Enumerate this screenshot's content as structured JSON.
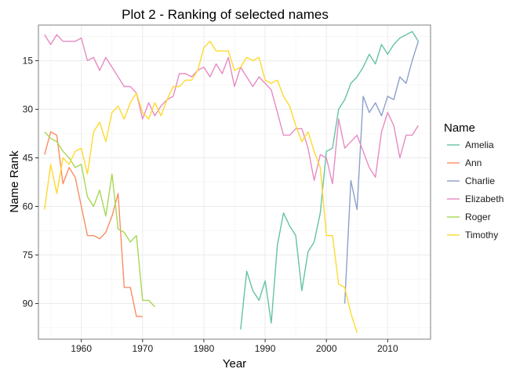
{
  "chart_data": {
    "type": "line",
    "title": "Plot 2 - Ranking of selected names",
    "xlabel": "Year",
    "ylabel": "Name Rank",
    "xlim": [
      1953,
      2017
    ],
    "ylim": [
      101,
      4
    ],
    "y_reversed": true,
    "x_ticks": [
      1960,
      1970,
      1980,
      1990,
      2000,
      2010
    ],
    "y_ticks": [
      15,
      30,
      45,
      60,
      75,
      90
    ],
    "grid": true,
    "legend_title": "Name",
    "legend_position": "right",
    "series": [
      {
        "name": "Amelia",
        "color": "#66c2a5",
        "points": [
          [
            1986,
            98
          ],
          [
            1987,
            80
          ],
          [
            1988,
            86
          ],
          [
            1989,
            89
          ],
          [
            1990,
            83
          ],
          [
            1991,
            96
          ],
          [
            1992,
            72
          ],
          [
            1993,
            62
          ],
          [
            1994,
            66
          ],
          [
            1995,
            69
          ],
          [
            1996,
            86
          ],
          [
            1997,
            74
          ],
          [
            1998,
            71
          ],
          [
            1999,
            62
          ],
          [
            2000,
            43
          ],
          [
            2001,
            42
          ],
          [
            2002,
            30
          ],
          [
            2003,
            27
          ],
          [
            2004,
            22
          ],
          [
            2005,
            20
          ],
          [
            2006,
            17
          ],
          [
            2007,
            13
          ],
          [
            2008,
            16
          ],
          [
            2009,
            10
          ],
          [
            2010,
            13
          ],
          [
            2011,
            10
          ],
          [
            2012,
            8
          ],
          [
            2013,
            7
          ],
          [
            2014,
            6
          ],
          [
            2015,
            9
          ]
        ]
      },
      {
        "name": "Ann",
        "color": "#fc8d62",
        "points": [
          [
            1954,
            44
          ],
          [
            1955,
            37
          ],
          [
            1956,
            38
          ],
          [
            1957,
            53
          ],
          [
            1958,
            48
          ],
          [
            1959,
            51
          ],
          [
            1960,
            60
          ],
          [
            1961,
            69
          ],
          [
            1962,
            69
          ],
          [
            1963,
            70
          ],
          [
            1964,
            68
          ],
          [
            1965,
            63
          ],
          [
            1966,
            56
          ],
          [
            1967,
            85
          ],
          [
            1968,
            85
          ],
          [
            1969,
            94
          ],
          [
            1970,
            94
          ]
        ]
      },
      {
        "name": "Charlie",
        "color": "#8da0cb",
        "points": [
          [
            2003,
            90
          ],
          [
            2004,
            52
          ],
          [
            2005,
            61
          ],
          [
            2006,
            26
          ],
          [
            2007,
            31
          ],
          [
            2008,
            28
          ],
          [
            2009,
            32
          ],
          [
            2010,
            26
          ],
          [
            2011,
            27
          ],
          [
            2012,
            20
          ],
          [
            2013,
            22
          ],
          [
            2014,
            15
          ],
          [
            2015,
            9
          ]
        ]
      },
      {
        "name": "Elizabeth",
        "color": "#e78ac3",
        "points": [
          [
            1954,
            7
          ],
          [
            1955,
            10
          ],
          [
            1956,
            7
          ],
          [
            1957,
            9
          ],
          [
            1958,
            9
          ],
          [
            1959,
            9
          ],
          [
            1960,
            8
          ],
          [
            1961,
            15
          ],
          [
            1962,
            14
          ],
          [
            1963,
            18
          ],
          [
            1964,
            14
          ],
          [
            1965,
            17
          ],
          [
            1966,
            20
          ],
          [
            1967,
            23
          ],
          [
            1968,
            23
          ],
          [
            1969,
            25
          ],
          [
            1970,
            33
          ],
          [
            1971,
            28
          ],
          [
            1972,
            32
          ],
          [
            1973,
            29
          ],
          [
            1974,
            27
          ],
          [
            1975,
            26
          ],
          [
            1976,
            19
          ],
          [
            1977,
            19
          ],
          [
            1978,
            20
          ],
          [
            1979,
            18
          ],
          [
            1980,
            17
          ],
          [
            1981,
            20
          ],
          [
            1982,
            16
          ],
          [
            1983,
            19
          ],
          [
            1984,
            14
          ],
          [
            1985,
            23
          ],
          [
            1986,
            17
          ],
          [
            1987,
            20
          ],
          [
            1988,
            23
          ],
          [
            1989,
            20
          ],
          [
            1990,
            22
          ],
          [
            1991,
            24
          ],
          [
            1992,
            31
          ],
          [
            1993,
            38
          ],
          [
            1994,
            38
          ],
          [
            1995,
            36
          ],
          [
            1996,
            36
          ],
          [
            1997,
            42
          ],
          [
            1998,
            52
          ],
          [
            1999,
            44
          ],
          [
            2000,
            45
          ],
          [
            2001,
            53
          ],
          [
            2002,
            33
          ],
          [
            2003,
            42
          ],
          [
            2004,
            40
          ],
          [
            2005,
            38
          ],
          [
            2006,
            43
          ],
          [
            2007,
            48
          ],
          [
            2008,
            51
          ],
          [
            2009,
            37
          ],
          [
            2010,
            31
          ],
          [
            2011,
            35
          ],
          [
            2012,
            45
          ],
          [
            2013,
            38
          ],
          [
            2014,
            38
          ],
          [
            2015,
            35
          ]
        ]
      },
      {
        "name": "Roger",
        "color": "#a6d854",
        "points": [
          [
            1954,
            37
          ],
          [
            1955,
            39
          ],
          [
            1956,
            40
          ],
          [
            1957,
            43
          ],
          [
            1958,
            45
          ],
          [
            1959,
            48
          ],
          [
            1960,
            47
          ],
          [
            1961,
            57
          ],
          [
            1962,
            60
          ],
          [
            1963,
            55
          ],
          [
            1964,
            63
          ],
          [
            1965,
            50
          ],
          [
            1966,
            67
          ],
          [
            1967,
            68
          ],
          [
            1968,
            71
          ],
          [
            1969,
            69
          ],
          [
            1970,
            89
          ],
          [
            1971,
            89
          ],
          [
            1972,
            91
          ]
        ]
      },
      {
        "name": "Timothy",
        "color": "#ffd92f",
        "points": [
          [
            1954,
            61
          ],
          [
            1955,
            47
          ],
          [
            1956,
            56
          ],
          [
            1957,
            45
          ],
          [
            1958,
            47
          ],
          [
            1959,
            43
          ],
          [
            1960,
            42
          ],
          [
            1961,
            50
          ],
          [
            1962,
            37
          ],
          [
            1963,
            34
          ],
          [
            1964,
            40
          ],
          [
            1965,
            31
          ],
          [
            1966,
            29
          ],
          [
            1967,
            33
          ],
          [
            1968,
            28
          ],
          [
            1969,
            25
          ],
          [
            1970,
            31
          ],
          [
            1971,
            33
          ],
          [
            1972,
            28
          ],
          [
            1973,
            32
          ],
          [
            1974,
            27
          ],
          [
            1975,
            23
          ],
          [
            1976,
            23
          ],
          [
            1977,
            21
          ],
          [
            1978,
            21
          ],
          [
            1979,
            18
          ],
          [
            1980,
            11
          ],
          [
            1981,
            9
          ],
          [
            1982,
            12
          ],
          [
            1983,
            12
          ],
          [
            1984,
            12
          ],
          [
            1985,
            18
          ],
          [
            1986,
            17
          ],
          [
            1987,
            14
          ],
          [
            1988,
            15
          ],
          [
            1989,
            14
          ],
          [
            1990,
            21
          ],
          [
            1991,
            22
          ],
          [
            1992,
            21
          ],
          [
            1993,
            26
          ],
          [
            1994,
            29
          ],
          [
            1995,
            35
          ],
          [
            1996,
            40
          ],
          [
            1997,
            37
          ],
          [
            1998,
            43
          ],
          [
            1999,
            48
          ],
          [
            2000,
            69
          ],
          [
            2001,
            69
          ],
          [
            2002,
            84
          ],
          [
            2003,
            85
          ],
          [
            2004,
            93
          ],
          [
            2005,
            99
          ]
        ]
      }
    ]
  }
}
